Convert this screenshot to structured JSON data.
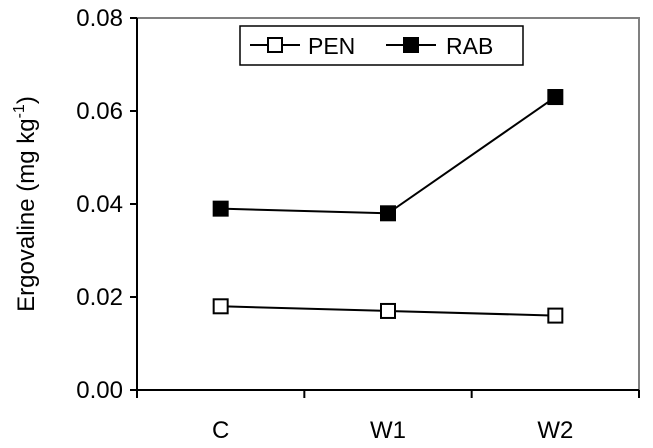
{
  "chart_data": {
    "type": "line",
    "categories": [
      "C",
      "W1",
      "W2"
    ],
    "series": [
      {
        "name": "PEN",
        "values": [
          0.018,
          0.017,
          0.016
        ],
        "marker": "open-square",
        "error": [
          0,
          0,
          0
        ]
      },
      {
        "name": "RAB",
        "values": [
          0.039,
          0.038,
          0.063
        ],
        "marker": "filled-square",
        "error": [
          0,
          0,
          0.0015
        ]
      }
    ],
    "ylabel": "Ergovaline (mg kg",
    "ylabel_superscript": "-1",
    "ylabel_close": ")",
    "ylim": [
      0,
      0.08
    ],
    "yticks": [
      "0.00",
      "0.02",
      "0.04",
      "0.06",
      "0.08"
    ],
    "grid": false,
    "legend": "top-center",
    "colors": {
      "line": "#000000",
      "frame": "#808080",
      "background": "#ffffff"
    }
  }
}
